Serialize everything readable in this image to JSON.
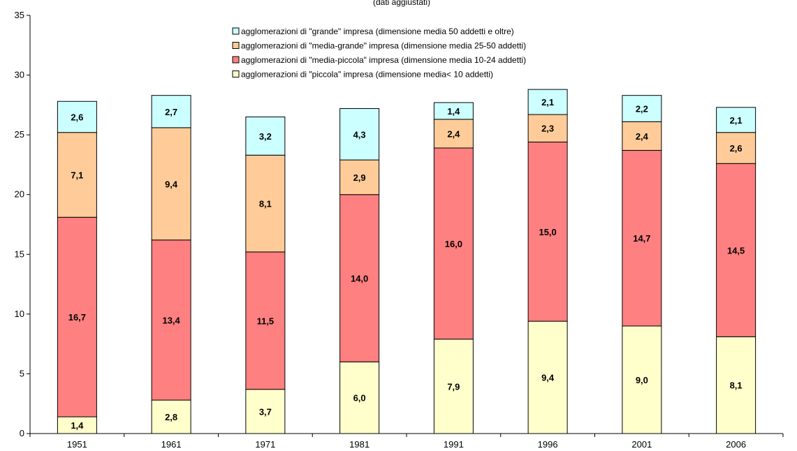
{
  "chart_data": {
    "type": "bar",
    "stacked": true,
    "title_fragment": "(dati aggiustati)",
    "categories": [
      "1951",
      "1961",
      "1971",
      "1981",
      "1991",
      "1996",
      "2001",
      "2006"
    ],
    "ylim": [
      0,
      35
    ],
    "yticks": [
      0,
      5,
      10,
      15,
      20,
      25,
      30,
      35
    ],
    "grid": false,
    "legend_position": "top-center",
    "series": [
      {
        "name": "agglomerazioni di \"piccola\" impresa (dimensione media< 10 addetti)",
        "color": "#FFFFCC",
        "values": [
          1.4,
          2.8,
          3.7,
          6.0,
          7.9,
          9.4,
          9.0,
          8.1
        ],
        "labels": [
          "1,4",
          "2,8",
          "3,7",
          "6,0",
          "7,9",
          "9,4",
          "9,0",
          "8,1"
        ]
      },
      {
        "name": "agglomerazioni di \"media-piccola\" impresa (dimensione media 10-24 addetti)",
        "color": "#FF8080",
        "values": [
          16.7,
          13.4,
          11.5,
          14.0,
          16.0,
          15.0,
          14.7,
          14.5
        ],
        "labels": [
          "16,7",
          "13,4",
          "11,5",
          "14,0",
          "16,0",
          "15,0",
          "14,7",
          "14,5"
        ]
      },
      {
        "name": "agglomerazioni di \"media-grande\" impresa (dimensione media 25-50 addetti)",
        "color": "#FFCC99",
        "values": [
          7.1,
          9.4,
          8.1,
          2.9,
          2.4,
          2.3,
          2.4,
          2.6
        ],
        "labels": [
          "7,1",
          "9,4",
          "8,1",
          "2,9",
          "2,4",
          "2,3",
          "2,4",
          "2,6"
        ]
      },
      {
        "name": "agglomerazioni di \"grande\" impresa (dimensione media 50 addetti e oltre)",
        "color": "#CCFFFF",
        "values": [
          2.6,
          2.7,
          3.2,
          4.3,
          1.4,
          2.1,
          2.2,
          2.1
        ],
        "labels": [
          "2,6",
          "2,7",
          "3,2",
          "4,3",
          "1,4",
          "2,1",
          "2,2",
          "2,1"
        ]
      }
    ],
    "legend_order": [
      3,
      2,
      1,
      0
    ]
  }
}
